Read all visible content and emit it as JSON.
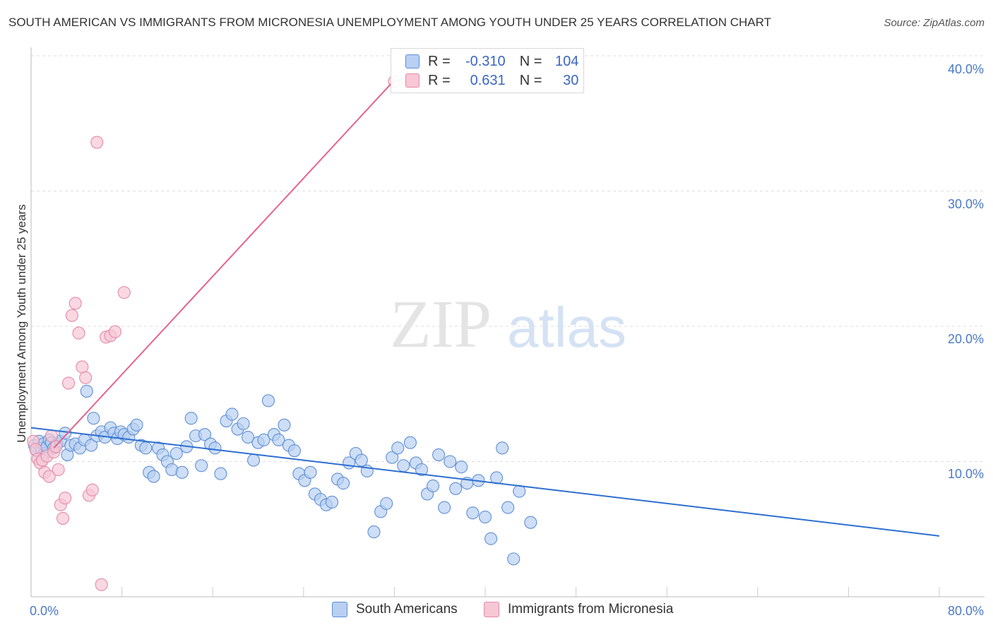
{
  "title": "SOUTH AMERICAN VS IMMIGRANTS FROM MICRONESIA UNEMPLOYMENT AMONG YOUTH UNDER 25 YEARS CORRELATION CHART",
  "source": "Source: ZipAtlas.com",
  "watermark": {
    "zip": "ZIP",
    "atlas": "atlas"
  },
  "legend": {
    "r_label": "R =",
    "n_label": "N =",
    "rows": [
      {
        "r": "-0.310",
        "n": "104"
      },
      {
        "r": "0.631",
        "n": "30"
      }
    ]
  },
  "colors": {
    "blue_fill": "#b8d0f2",
    "blue_stroke": "#5f8fd4",
    "blue_line": "#2e6fd0",
    "pink_fill": "#f7c7d6",
    "pink_stroke": "#e58aa8",
    "pink_line": "#e5648c",
    "grid": "#dddddd",
    "tick_text": "#4a78c8"
  },
  "chart_data": {
    "type": "scatter",
    "title": "SOUTH AMERICAN VS IMMIGRANTS FROM MICRONESIA UNEMPLOYMENT AMONG YOUTH UNDER 25 YEARS CORRELATION CHART",
    "xlabel": "",
    "ylabel": "Unemployment Among Youth under 25 years",
    "xlim": [
      0,
      80
    ],
    "ylim": [
      0,
      40
    ],
    "x_tick_labels": [
      "0.0%",
      "80.0%"
    ],
    "y_ticks": [
      10,
      20,
      30,
      40
    ],
    "y_tick_labels": [
      "10.0%",
      "20.0%",
      "30.0%",
      "40.0%"
    ],
    "grid": "horizontal dashed",
    "legend_position": "top-center",
    "series": [
      {
        "name": "South Americans",
        "r": -0.31,
        "n": 104,
        "trend": {
          "x": [
            0,
            80
          ],
          "y": [
            12.5,
            4.5
          ]
        },
        "points": [
          [
            0.3,
            11.2
          ],
          [
            0.5,
            10.8
          ],
          [
            0.7,
            11.5
          ],
          [
            0.9,
            11.0
          ],
          [
            1.1,
            11.3
          ],
          [
            1.2,
            10.6
          ],
          [
            1.4,
            11.1
          ],
          [
            1.6,
            11.6
          ],
          [
            1.8,
            11.4
          ],
          [
            2.0,
            11.0
          ],
          [
            2.3,
            11.3
          ],
          [
            2.6,
            11.5
          ],
          [
            3.0,
            12.1
          ],
          [
            3.2,
            10.5
          ],
          [
            3.5,
            11.2
          ],
          [
            3.9,
            11.3
          ],
          [
            4.3,
            11.0
          ],
          [
            4.7,
            11.6
          ],
          [
            4.9,
            15.2
          ],
          [
            5.3,
            11.2
          ],
          [
            5.5,
            13.2
          ],
          [
            5.8,
            11.9
          ],
          [
            6.2,
            12.2
          ],
          [
            6.5,
            11.8
          ],
          [
            7.0,
            12.5
          ],
          [
            7.3,
            12.1
          ],
          [
            7.6,
            11.7
          ],
          [
            7.9,
            12.2
          ],
          [
            8.2,
            12.0
          ],
          [
            8.6,
            11.8
          ],
          [
            9.0,
            12.4
          ],
          [
            9.3,
            12.7
          ],
          [
            9.7,
            11.2
          ],
          [
            10.1,
            11.0
          ],
          [
            10.4,
            9.2
          ],
          [
            10.8,
            8.9
          ],
          [
            11.2,
            11.0
          ],
          [
            11.6,
            10.5
          ],
          [
            12.0,
            10.0
          ],
          [
            12.4,
            9.4
          ],
          [
            12.8,
            10.6
          ],
          [
            13.3,
            9.2
          ],
          [
            13.7,
            11.1
          ],
          [
            14.1,
            13.2
          ],
          [
            14.5,
            11.9
          ],
          [
            15.0,
            9.7
          ],
          [
            15.3,
            12.0
          ],
          [
            15.8,
            11.3
          ],
          [
            16.2,
            11.0
          ],
          [
            16.7,
            9.1
          ],
          [
            17.2,
            13.0
          ],
          [
            17.7,
            13.5
          ],
          [
            18.2,
            12.4
          ],
          [
            18.7,
            12.8
          ],
          [
            19.1,
            11.8
          ],
          [
            19.6,
            10.1
          ],
          [
            20.0,
            11.4
          ],
          [
            20.5,
            11.6
          ],
          [
            20.9,
            14.5
          ],
          [
            21.4,
            12.0
          ],
          [
            21.8,
            11.6
          ],
          [
            22.3,
            12.7
          ],
          [
            22.7,
            11.2
          ],
          [
            23.2,
            10.8
          ],
          [
            23.6,
            9.1
          ],
          [
            24.1,
            8.6
          ],
          [
            24.6,
            9.2
          ],
          [
            25.0,
            7.6
          ],
          [
            25.5,
            7.2
          ],
          [
            26.0,
            6.8
          ],
          [
            26.5,
            7.0
          ],
          [
            27.0,
            8.7
          ],
          [
            27.5,
            8.4
          ],
          [
            28.0,
            9.9
          ],
          [
            28.6,
            10.6
          ],
          [
            29.1,
            10.1
          ],
          [
            29.6,
            9.3
          ],
          [
            30.2,
            4.8
          ],
          [
            30.8,
            6.3
          ],
          [
            31.3,
            6.9
          ],
          [
            31.8,
            10.3
          ],
          [
            32.3,
            11.0
          ],
          [
            32.8,
            9.7
          ],
          [
            33.4,
            11.4
          ],
          [
            33.9,
            9.9
          ],
          [
            34.4,
            9.4
          ],
          [
            34.9,
            7.6
          ],
          [
            35.4,
            8.2
          ],
          [
            35.9,
            10.5
          ],
          [
            36.4,
            6.6
          ],
          [
            36.9,
            10.0
          ],
          [
            37.4,
            8.0
          ],
          [
            37.9,
            9.6
          ],
          [
            38.4,
            8.4
          ],
          [
            38.9,
            6.2
          ],
          [
            39.4,
            8.6
          ],
          [
            40.0,
            5.9
          ],
          [
            40.5,
            4.3
          ],
          [
            41.0,
            8.8
          ],
          [
            41.5,
            11.0
          ],
          [
            42.0,
            6.6
          ],
          [
            42.5,
            2.8
          ],
          [
            43.0,
            7.8
          ],
          [
            44.0,
            5.5
          ]
        ]
      },
      {
        "name": "Immigrants from Micronesia",
        "r": 0.631,
        "n": 30,
        "trend": {
          "x": [
            2,
            32
          ],
          "y": [
            11.0,
            38.2
          ]
        },
        "points": [
          [
            0.2,
            11.5
          ],
          [
            0.4,
            10.9
          ],
          [
            0.6,
            10.2
          ],
          [
            0.8,
            9.9
          ],
          [
            1.0,
            10.1
          ],
          [
            1.2,
            9.2
          ],
          [
            1.4,
            10.4
          ],
          [
            1.6,
            8.9
          ],
          [
            1.8,
            11.9
          ],
          [
            2.0,
            10.7
          ],
          [
            2.2,
            11.1
          ],
          [
            2.4,
            9.4
          ],
          [
            2.6,
            6.8
          ],
          [
            2.8,
            5.8
          ],
          [
            3.0,
            7.3
          ],
          [
            3.3,
            15.8
          ],
          [
            3.6,
            20.8
          ],
          [
            3.9,
            21.7
          ],
          [
            4.2,
            19.5
          ],
          [
            4.5,
            17.0
          ],
          [
            4.8,
            16.2
          ],
          [
            5.1,
            7.5
          ],
          [
            5.4,
            7.9
          ],
          [
            5.8,
            33.6
          ],
          [
            6.2,
            0.9
          ],
          [
            6.6,
            19.2
          ],
          [
            7.0,
            19.3
          ],
          [
            7.4,
            19.6
          ],
          [
            8.2,
            22.5
          ],
          [
            32.0,
            38.1
          ]
        ]
      }
    ]
  },
  "bottom_legend": [
    "South Americans",
    "Immigrants from Micronesia"
  ]
}
